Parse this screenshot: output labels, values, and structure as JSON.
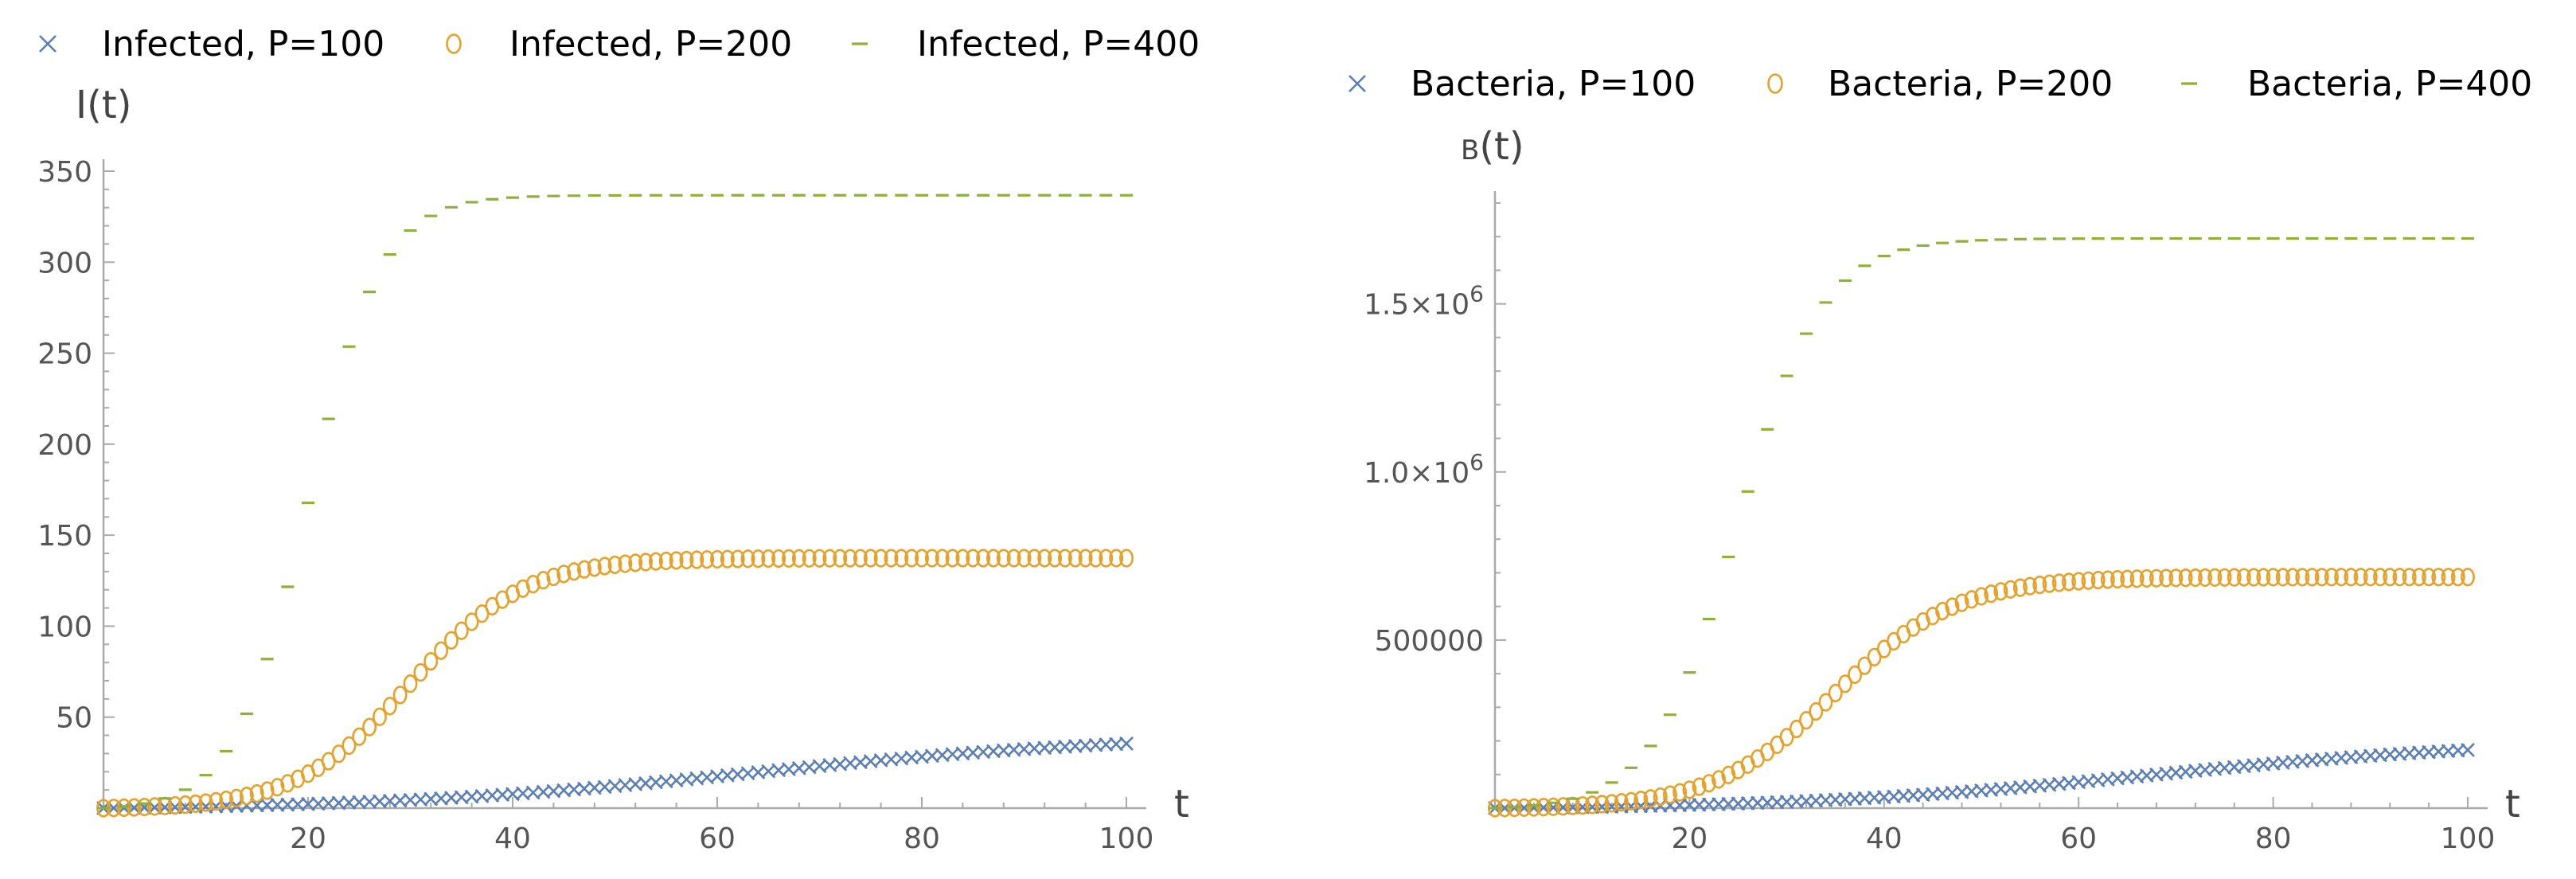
{
  "colors": {
    "p100": "#5b7fb5",
    "p200": "#e5a22a",
    "p400": "#8fb03a"
  },
  "chart_data": [
    {
      "type": "scatter",
      "xlabel": "t",
      "ylabel": "I(t)",
      "xlim": [
        0,
        100
      ],
      "ylim": [
        0,
        350
      ],
      "xticks": [
        20,
        40,
        60,
        80,
        100
      ],
      "xtick_labels": [
        "20",
        "40",
        "60",
        "80",
        "100"
      ],
      "yticks": [
        50,
        100,
        150,
        200,
        250,
        300,
        350
      ],
      "ytick_labels": [
        "50",
        "100",
        "150",
        "200",
        "250",
        "300",
        "350"
      ],
      "legend": [
        {
          "marker": "x",
          "label": "Infected, P=100"
        },
        {
          "marker": "o",
          "label": "Infected, P=200"
        },
        {
          "marker": "-",
          "label": "Infected, P=400"
        }
      ],
      "series": [
        {
          "name": "Infected, P=100",
          "marker": "x",
          "model": "logistic",
          "K": 42,
          "r": 0.054,
          "t0": 64,
          "dt": 1
        },
        {
          "name": "Infected, P=200",
          "marker": "o",
          "model": "logistic",
          "K": 138,
          "r": 0.18,
          "t0": 30,
          "dt": 1
        },
        {
          "name": "Infected, P=400",
          "marker": "-",
          "model": "logistic",
          "K": 338,
          "r": 0.28,
          "t0": 20,
          "dt": 2
        }
      ]
    },
    {
      "type": "scatter",
      "xlabel": "t",
      "ylabel": "B(t)",
      "xlim": [
        0,
        100
      ],
      "ylim": [
        0,
        1800000
      ],
      "xticks": [
        20,
        40,
        60,
        80,
        100
      ],
      "xtick_labels": [
        "20",
        "40",
        "60",
        "80",
        "100"
      ],
      "yticks": [
        500000,
        1000000,
        1500000
      ],
      "ytick_labels": [
        "500000",
        "1.0×10^6",
        "1.5×10^6"
      ],
      "legend": [
        {
          "marker": "x",
          "label": "Bacteria, P=100"
        },
        {
          "marker": "o",
          "label": "Bacteria, P=200"
        },
        {
          "marker": "-",
          "label": "Bacteria, P=400"
        }
      ],
      "series": [
        {
          "name": "Bacteria, P=100",
          "marker": "x",
          "model": "logistic",
          "K": 210000,
          "r": 0.054,
          "t0": 68,
          "dt": 1
        },
        {
          "name": "Bacteria, P=200",
          "marker": "o",
          "model": "logistic",
          "K": 690000,
          "r": 0.16,
          "t0": 35,
          "dt": 1
        },
        {
          "name": "Bacteria, P=400",
          "marker": "-",
          "model": "logistic",
          "K": 1700000,
          "r": 0.23,
          "t0": 25,
          "dt": 2
        }
      ]
    }
  ]
}
